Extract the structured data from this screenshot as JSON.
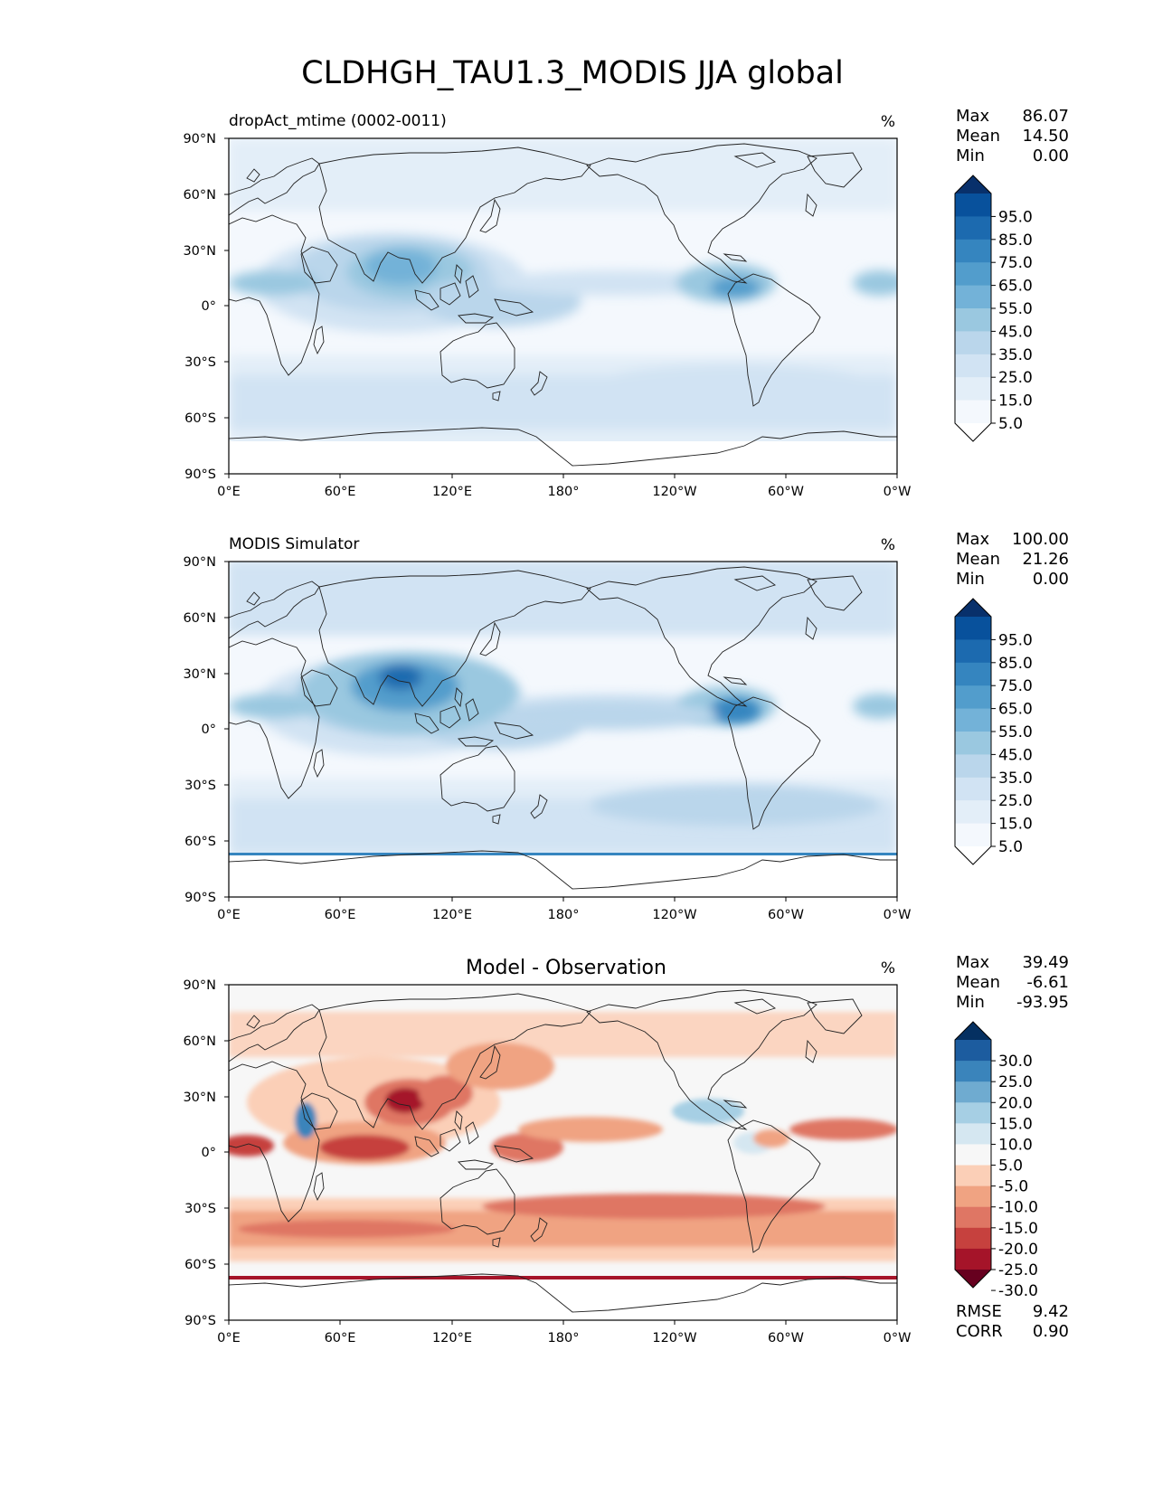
{
  "figure": {
    "title": "CLDHGH_TAU1.3_MODIS JJA global"
  },
  "axes": {
    "lat_ticks": [
      "90°N",
      "60°N",
      "30°N",
      "0°",
      "30°S",
      "60°S",
      "90°S"
    ],
    "lon_ticks": [
      "0°E",
      "60°E",
      "120°E",
      "180°",
      "120°W",
      "60°W",
      "0°W"
    ]
  },
  "panels": [
    {
      "name": "test",
      "title_left": "dropAct_mtime (0002-0011)",
      "title_center": "",
      "units": "%",
      "stats": [
        {
          "label": "Max",
          "value": "86.07"
        },
        {
          "label": "Mean",
          "value": "14.50"
        },
        {
          "label": "Min",
          "value": "0.00"
        }
      ],
      "colorbar": {
        "labels": [
          "95.0",
          "85.0",
          "75.0",
          "65.0",
          "55.0",
          "45.0",
          "35.0",
          "25.0",
          "15.0",
          "5.0"
        ],
        "colors": [
          "#ffffff",
          "#f4f8fd",
          "#e3eef8",
          "#d1e3f3",
          "#bad6eb",
          "#9ac8e0",
          "#73b2d8",
          "#529dcc",
          "#3585bf",
          "#1c6aaf",
          "#08519c",
          "#08306b"
        ]
      }
    },
    {
      "name": "reference",
      "title_left": "MODIS Simulator",
      "title_center": "",
      "units": "%",
      "stats": [
        {
          "label": "Max",
          "value": "100.00"
        },
        {
          "label": "Mean",
          "value": "21.26"
        },
        {
          "label": "Min",
          "value": "0.00"
        }
      ],
      "colorbar": {
        "labels": [
          "95.0",
          "85.0",
          "75.0",
          "65.0",
          "55.0",
          "45.0",
          "35.0",
          "25.0",
          "15.0",
          "5.0"
        ],
        "colors": [
          "#ffffff",
          "#f4f8fd",
          "#e3eef8",
          "#d1e3f3",
          "#bad6eb",
          "#9ac8e0",
          "#73b2d8",
          "#529dcc",
          "#3585bf",
          "#1c6aaf",
          "#08519c",
          "#08306b"
        ]
      }
    },
    {
      "name": "difference",
      "title_left": "",
      "title_center": "Model - Observation",
      "units": "%",
      "stats": [
        {
          "label": "Max",
          "value": "39.49"
        },
        {
          "label": "Mean",
          "value": "-6.61"
        },
        {
          "label": "Min",
          "value": "-93.95"
        }
      ],
      "metrics": [
        {
          "label": "RMSE",
          "value": "9.42"
        },
        {
          "label": "CORR",
          "value": "0.90"
        }
      ],
      "colorbar": {
        "labels": [
          "30.0",
          "25.0",
          "20.0",
          "15.0",
          "10.0",
          "5.0",
          "-5.0",
          "-10.0",
          "-15.0",
          "-20.0",
          "-25.0",
          "-30.0"
        ],
        "colors": [
          "#67001f",
          "#a51429",
          "#c6413e",
          "#df7664",
          "#f0a382",
          "#fbcfb7",
          "#f7f7f7",
          "#d5e7f1",
          "#a6cfe4",
          "#6fabd0",
          "#3a84bb",
          "#1c5c9f",
          "#053061"
        ]
      }
    }
  ]
}
